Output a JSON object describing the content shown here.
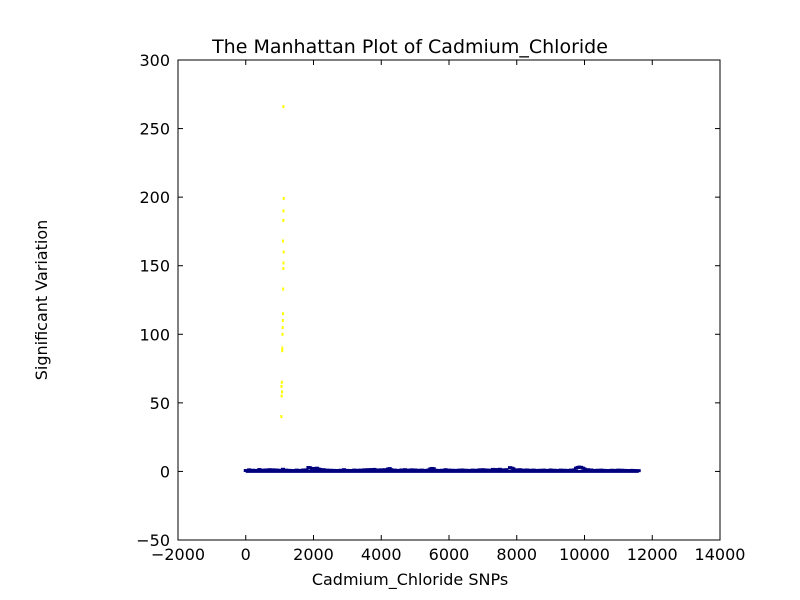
{
  "chart_data": {
    "type": "scatter",
    "title": "The Manhattan Plot of Cadmium_Chloride",
    "xlabel": "Cadmium_Chloride SNPs",
    "ylabel": "Significant Variation",
    "xlim": [
      -2000,
      14000
    ],
    "ylim": [
      -50,
      300
    ],
    "x_ticks": [
      -2000,
      0,
      2000,
      4000,
      6000,
      8000,
      10000,
      12000,
      14000
    ],
    "y_ticks": [
      -50,
      0,
      50,
      100,
      150,
      200,
      250,
      300
    ],
    "x_tick_labels": [
      "−2000",
      "0",
      "2000",
      "4000",
      "6000",
      "8000",
      "10000",
      "12000",
      "14000"
    ],
    "y_tick_labels": [
      "−50",
      "0",
      "50",
      "100",
      "150",
      "200",
      "250",
      "300"
    ],
    "grid": false,
    "series": [
      {
        "color": "#00007f",
        "x": [
          0,
          100,
          200,
          300,
          400,
          500,
          600,
          700,
          800,
          900,
          1000,
          1100,
          1200,
          1300,
          1400,
          1500,
          1600,
          1700,
          1800,
          1850,
          1900,
          1950,
          2000,
          2050,
          2100,
          2150,
          2200,
          2300,
          2400,
          2500,
          2600,
          2700,
          2800,
          2900,
          3000,
          3100,
          3200,
          3300,
          3400,
          3500,
          3600,
          3700,
          3800,
          3900,
          4000,
          4100,
          4200,
          4250,
          4300,
          4400,
          4500,
          4600,
          4700,
          4800,
          4900,
          5000,
          5100,
          5200,
          5300,
          5400,
          5450,
          5500,
          5550,
          5600,
          5700,
          5800,
          5900,
          6000,
          6100,
          6200,
          6300,
          6400,
          6500,
          6600,
          6700,
          6800,
          6900,
          7000,
          7100,
          7200,
          7300,
          7400,
          7500,
          7600,
          7700,
          7800,
          7850,
          7900,
          8000,
          8100,
          8200,
          8300,
          8400,
          8500,
          8600,
          8700,
          8800,
          8900,
          9000,
          9100,
          9200,
          9300,
          9400,
          9500,
          9600,
          9700,
          9750,
          9800,
          9850,
          9900,
          9950,
          10000,
          10100,
          10200,
          10300,
          10400,
          10500,
          10600,
          10700,
          10800,
          10900,
          11000,
          11100,
          11200,
          11300,
          11400,
          11500,
          11600
        ],
        "y": [
          0.3,
          0.8,
          0.5,
          0.4,
          1.0,
          0.6,
          0.7,
          0.9,
          0.8,
          0.7,
          0.5,
          1.2,
          0.6,
          0.4,
          0.3,
          0.6,
          0.4,
          0.7,
          0.8,
          2.5,
          2.3,
          1.5,
          1.8,
          1.2,
          2.0,
          1.4,
          1.1,
          0.9,
          0.6,
          0.5,
          0.4,
          0.3,
          0.5,
          0.9,
          0.4,
          0.3,
          0.6,
          0.5,
          0.6,
          0.8,
          0.9,
          1.0,
          1.1,
          0.7,
          0.8,
          0.9,
          1.4,
          1.7,
          0.9,
          0.6,
          0.4,
          0.7,
          0.9,
          0.6,
          0.8,
          0.7,
          0.5,
          0.6,
          0.4,
          0.7,
          1.5,
          1.8,
          1.6,
          0.5,
          0.4,
          0.5,
          0.9,
          0.6,
          0.5,
          0.4,
          0.6,
          0.7,
          0.5,
          0.4,
          0.6,
          0.5,
          0.8,
          0.9,
          0.7,
          0.6,
          1.1,
          1.0,
          1.2,
          0.8,
          0.9,
          2.4,
          2.1,
          1.6,
          0.8,
          0.9,
          0.6,
          0.7,
          0.5,
          0.6,
          0.4,
          0.5,
          0.6,
          0.4,
          0.7,
          0.5,
          0.4,
          0.6,
          0.5,
          0.4,
          0.6,
          0.8,
          2.0,
          2.5,
          2.8,
          2.6,
          2.1,
          1.5,
          0.9,
          0.7,
          0.4,
          0.5,
          0.6,
          0.4,
          0.3,
          0.5,
          0.4,
          0.6,
          0.5,
          0.4,
          0.3,
          0.4,
          0.3,
          0.2
        ]
      },
      {
        "color": "#ffff00",
        "x": [
          1050,
          1060,
          1070,
          1055,
          1065,
          1075,
          1080,
          1085,
          1090,
          1095,
          1100,
          1105,
          1110,
          1115,
          1120,
          1100,
          1110,
          1115,
          1120,
          1110
        ],
        "y": [
          40,
          55,
          58,
          62,
          65,
          88,
          90,
          100,
          105,
          110,
          115,
          133,
          148,
          152,
          160,
          168,
          183,
          190,
          199,
          266
        ]
      }
    ]
  }
}
